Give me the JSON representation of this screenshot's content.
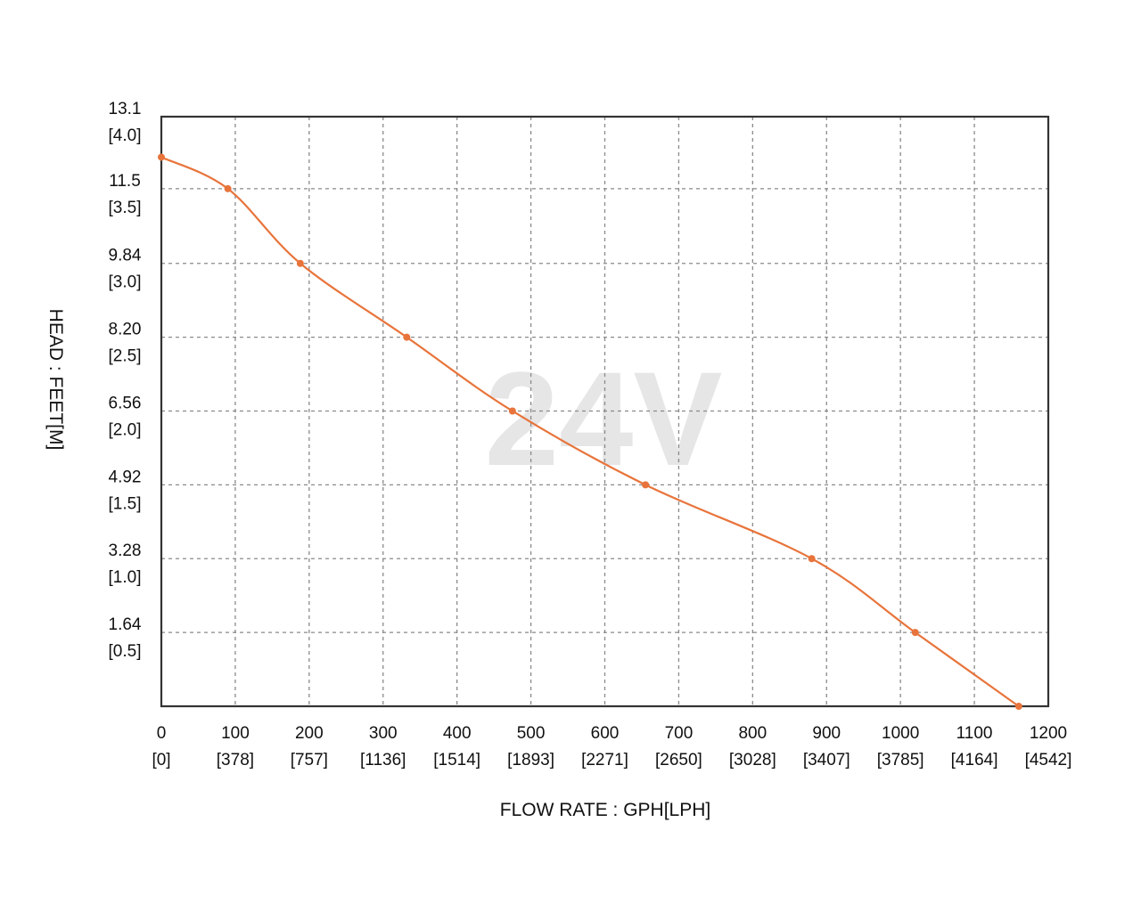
{
  "chart_data": {
    "type": "line",
    "watermark": "24V",
    "xlabel": "FLOW RATE : GPH[LPH]",
    "ylabel": "HEAD : FEET[M]",
    "xlim": [
      0,
      1200
    ],
    "ylim": [
      0,
      13.1
    ],
    "x_ticks": [
      {
        "value": 0,
        "label": "0",
        "sublabel": "[0]"
      },
      {
        "value": 100,
        "label": "100",
        "sublabel": "[378]"
      },
      {
        "value": 200,
        "label": "200",
        "sublabel": "[757]"
      },
      {
        "value": 300,
        "label": "300",
        "sublabel": "[1136]"
      },
      {
        "value": 400,
        "label": "400",
        "sublabel": "[1514]"
      },
      {
        "value": 500,
        "label": "500",
        "sublabel": "[1893]"
      },
      {
        "value": 600,
        "label": "600",
        "sublabel": "[2271]"
      },
      {
        "value": 700,
        "label": "700",
        "sublabel": "[2650]"
      },
      {
        "value": 800,
        "label": "800",
        "sublabel": "[3028]"
      },
      {
        "value": 900,
        "label": "900",
        "sublabel": "[3407]"
      },
      {
        "value": 1000,
        "label": "1000",
        "sublabel": "[3785]"
      },
      {
        "value": 1100,
        "label": "1100",
        "sublabel": "[4164]"
      },
      {
        "value": 1200,
        "label": "1200",
        "sublabel": "[4542]"
      }
    ],
    "y_ticks": [
      {
        "value": 13.1,
        "label": "13.1",
        "sublabel": "[4.0]"
      },
      {
        "value": 11.5,
        "label": "11.5",
        "sublabel": "[3.5]"
      },
      {
        "value": 9.84,
        "label": "9.84",
        "sublabel": "[3.0]"
      },
      {
        "value": 8.2,
        "label": "8.20",
        "sublabel": "[2.5]"
      },
      {
        "value": 6.56,
        "label": "6.56",
        "sublabel": "[2.0]"
      },
      {
        "value": 4.92,
        "label": "4.92",
        "sublabel": "[1.5]"
      },
      {
        "value": 3.28,
        "label": "3.28",
        "sublabel": "[1.0]"
      },
      {
        "value": 1.64,
        "label": "1.64",
        "sublabel": "[0.5]"
      }
    ],
    "grid": true,
    "series": [
      {
        "color": "#e8743b",
        "points": [
          {
            "x": 0,
            "y": 12.2
          },
          {
            "x": 90,
            "y": 11.5
          },
          {
            "x": 188,
            "y": 9.84
          },
          {
            "x": 332,
            "y": 8.2
          },
          {
            "x": 475,
            "y": 6.56
          },
          {
            "x": 655,
            "y": 4.92
          },
          {
            "x": 880,
            "y": 3.28
          },
          {
            "x": 1020,
            "y": 1.64
          },
          {
            "x": 1160,
            "y": 0.0
          }
        ]
      }
    ]
  }
}
